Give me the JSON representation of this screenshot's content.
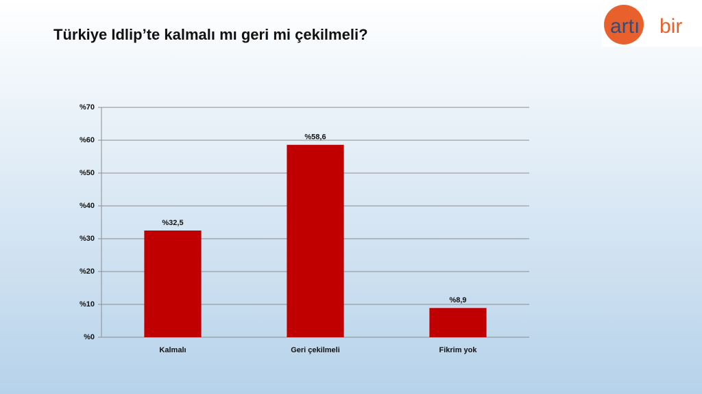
{
  "logo": {
    "first": "artı",
    "second": "bir"
  },
  "chart_data": {
    "type": "bar",
    "title": "Türkiye Idlip’te kalmalı mı geri mi çekilmeli?",
    "categories": [
      "Kalmalı",
      "Geri çekilmeli",
      "Fikrim yok"
    ],
    "values": [
      32.5,
      58.6,
      8.9
    ],
    "value_labels": [
      "%32,5",
      "%58,6",
      "%8,9"
    ],
    "color": "#c00000",
    "ylim": [
      0,
      70
    ],
    "yticks": [
      {
        "value": 0,
        "label": "%0"
      },
      {
        "value": 10,
        "label": "%10"
      },
      {
        "value": 20,
        "label": "%20"
      },
      {
        "value": 30,
        "label": "%30"
      },
      {
        "value": 40,
        "label": "%40"
      },
      {
        "value": 50,
        "label": "%50"
      },
      {
        "value": 60,
        "label": "%60"
      },
      {
        "value": 70,
        "label": "%70"
      }
    ],
    "grid": true
  }
}
